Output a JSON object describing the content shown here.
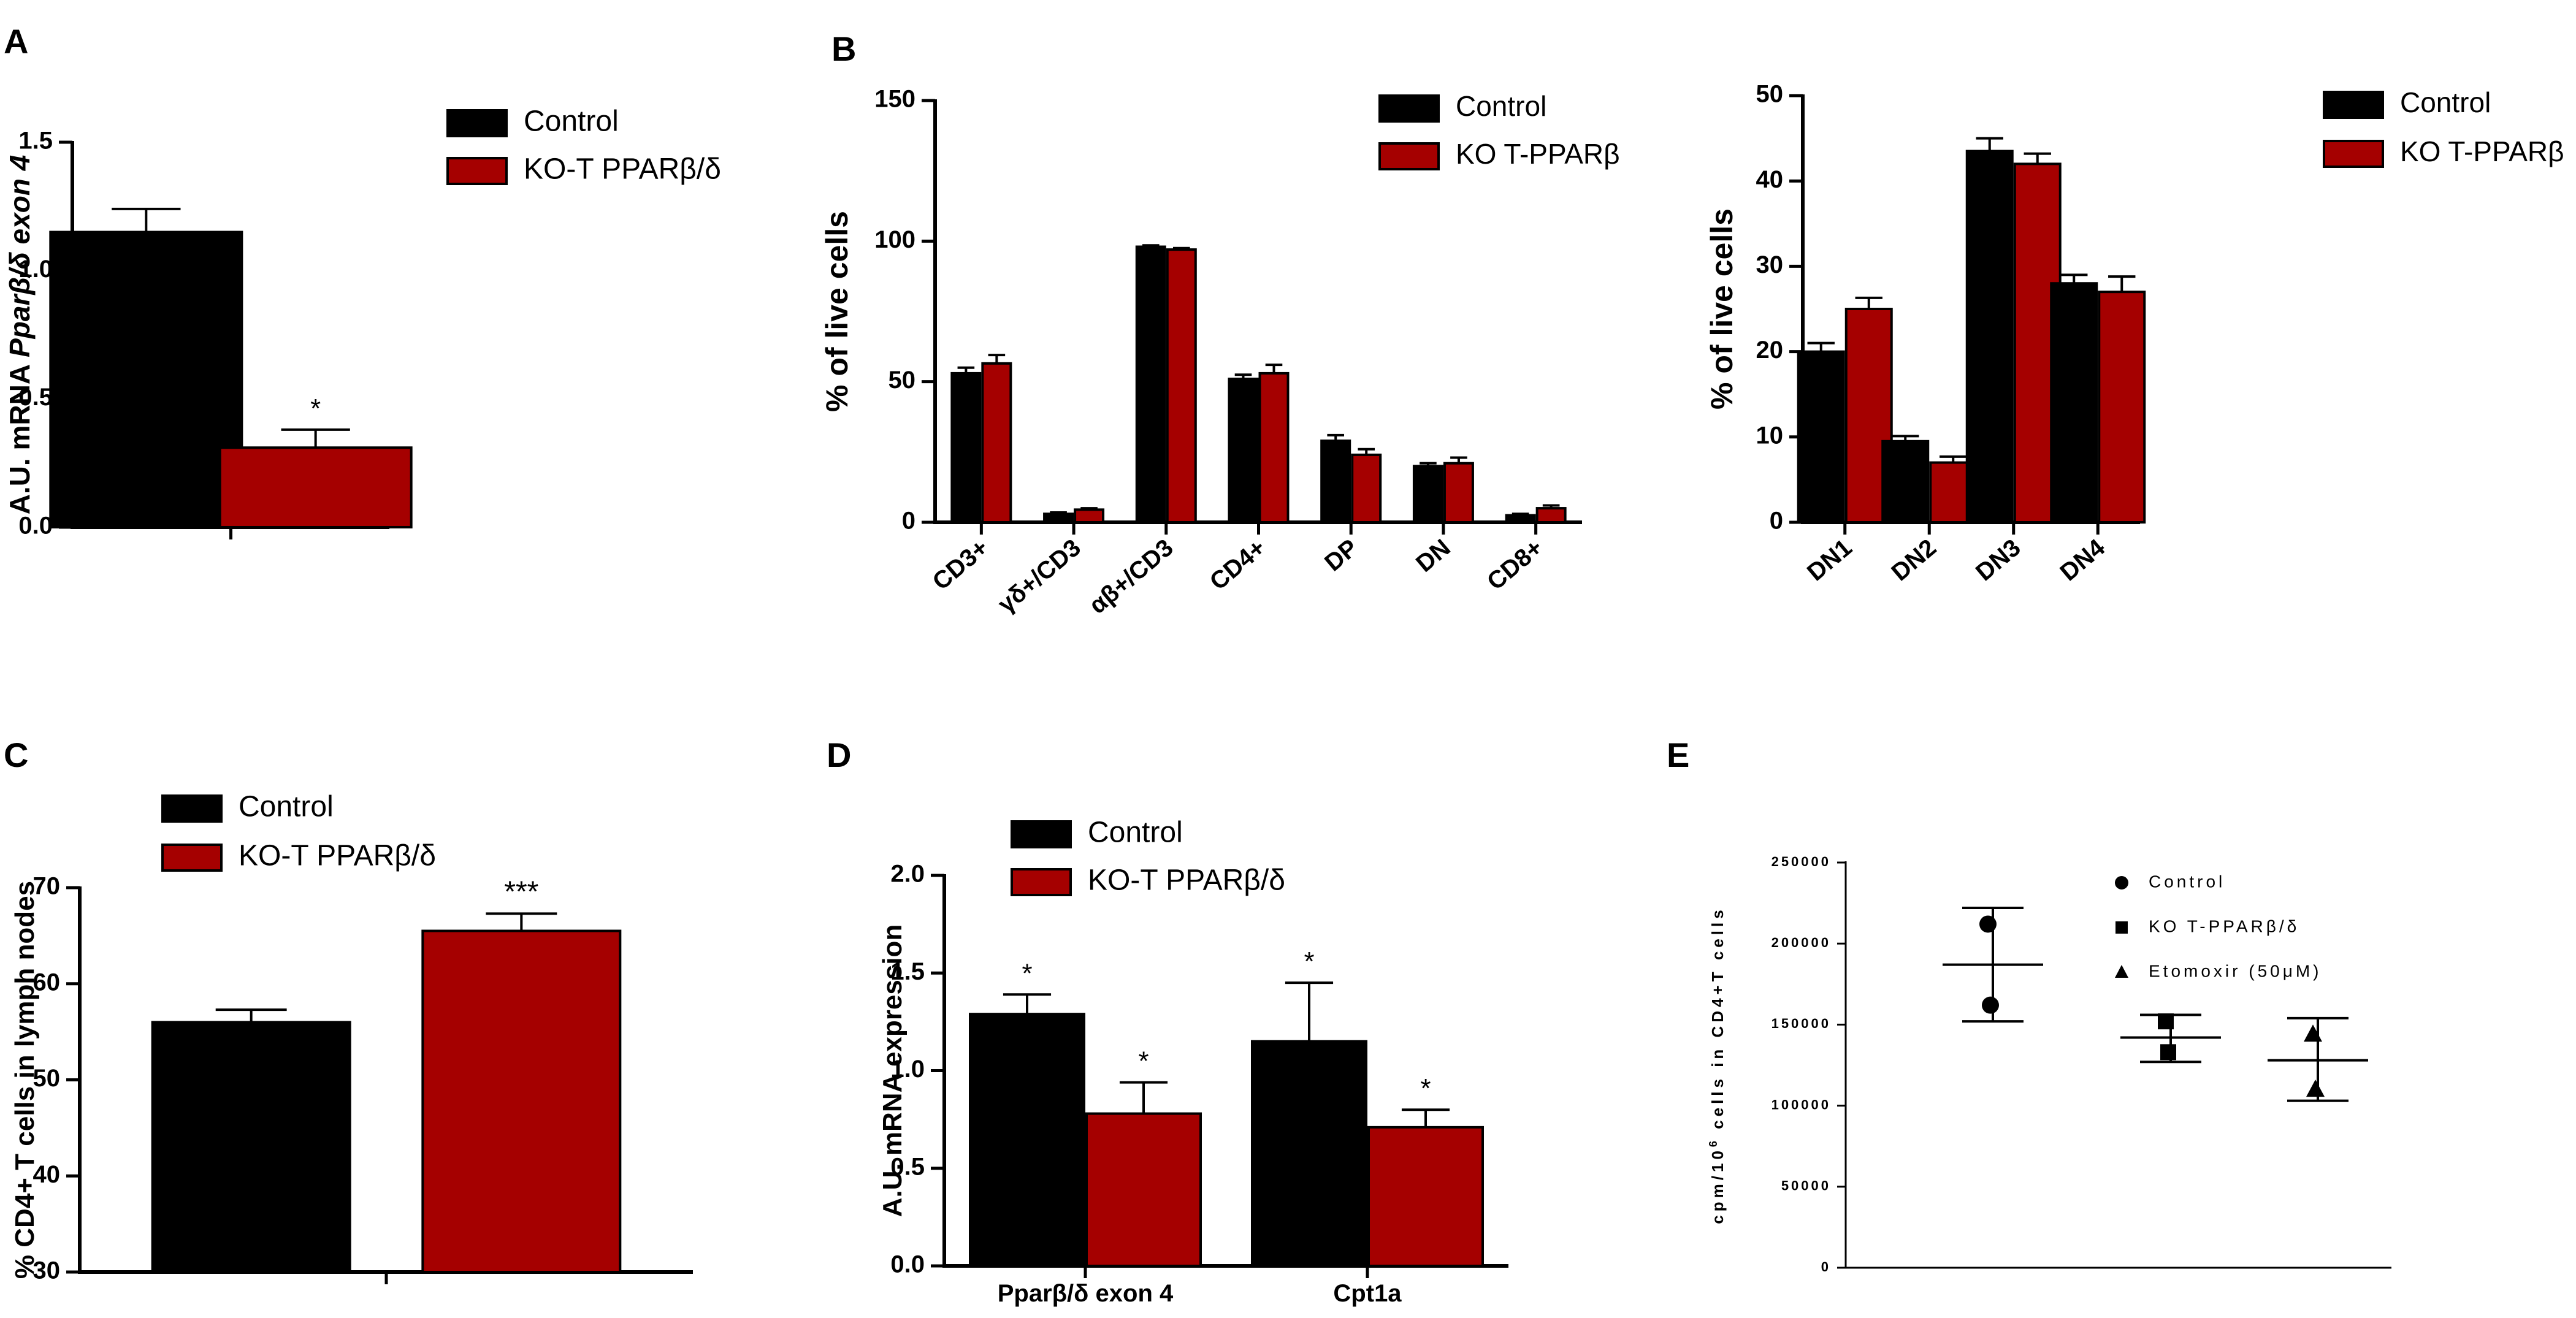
{
  "colors": {
    "control": "#000000",
    "ko": "#a50000",
    "axis": "#000000"
  },
  "chart_data": [
    {
      "id": "A",
      "panel_label": "A",
      "type": "bar",
      "ylabel_parts": [
        "A.U. mRNA ",
        "Pparβ/δ exon 4"
      ],
      "ylim": [
        0,
        1.5
      ],
      "yticks": [
        "0.0",
        "0.5",
        "1.0",
        "1.5"
      ],
      "categories": [
        ""
      ],
      "series": [
        {
          "name": "Control",
          "values": [
            1.15
          ],
          "errors": [
            0.09
          ]
        },
        {
          "name": "KO-T PPARβ/δ",
          "values": [
            0.31
          ],
          "errors": [
            0.07
          ]
        }
      ],
      "annotations": [
        "",
        "*"
      ],
      "legend": {
        "labels": [
          "Control",
          "KO-T PPARβ/δ"
        ],
        "position": "top-right"
      }
    },
    {
      "id": "B1",
      "panel_label": "B",
      "type": "bar",
      "ylabel": "% of live cells",
      "ylim": [
        0,
        150
      ],
      "yticks": [
        "0",
        "50",
        "100",
        "150"
      ],
      "categories": [
        "CD3+",
        "γδ+/CD3",
        "αβ+/CD3",
        "CD4+",
        "DP",
        "DN",
        "CD8+"
      ],
      "series": [
        {
          "name": "Control",
          "values": [
            53,
            3,
            98,
            51,
            29,
            20,
            2.5
          ],
          "errors": [
            2,
            0.5,
            0.5,
            1.5,
            2,
            1,
            0.5
          ]
        },
        {
          "name": "KO T-PPARβ",
          "values": [
            56.5,
            4.5,
            97,
            53,
            24,
            21,
            5
          ],
          "errors": [
            3,
            0.5,
            0.5,
            3,
            2,
            2,
            1
          ]
        }
      ],
      "legend": {
        "labels": [
          "Control",
          "KO T-PPARβ"
        ],
        "position": "top-right"
      }
    },
    {
      "id": "B2",
      "panel_label": "",
      "type": "bar",
      "ylabel": "% of live cells",
      "ylim": [
        0,
        50
      ],
      "yticks": [
        "0",
        "10",
        "20",
        "30",
        "40",
        "50"
      ],
      "categories": [
        "DN1",
        "DN2",
        "DN3",
        "DN4"
      ],
      "series": [
        {
          "name": "Control",
          "values": [
            20,
            9.5,
            43.5,
            28
          ],
          "errors": [
            1,
            0.6,
            1.5,
            1
          ]
        },
        {
          "name": "KO T-PPARβ",
          "values": [
            25,
            7,
            42,
            27
          ],
          "errors": [
            1.3,
            0.7,
            1.2,
            1.8
          ]
        }
      ],
      "legend": {
        "labels": [
          "Control",
          "KO T-PPARβ"
        ],
        "position": "top-right"
      }
    },
    {
      "id": "C",
      "panel_label": "C",
      "type": "bar",
      "ylabel": "% CD4+ T cells in lymph nodes",
      "ylim": [
        30,
        70
      ],
      "yticks": [
        "30",
        "40",
        "50",
        "60",
        "70"
      ],
      "categories": [
        ""
      ],
      "series": [
        {
          "name": "Control",
          "values": [
            56
          ],
          "errors": [
            1.3
          ]
        },
        {
          "name": "KO-T PPARβ/δ",
          "values": [
            65.5
          ],
          "errors": [
            1.8
          ]
        }
      ],
      "annotations": [
        "",
        "***"
      ],
      "legend": {
        "labels": [
          "Control",
          "KO-T PPARβ/δ"
        ],
        "position": "top-left"
      }
    },
    {
      "id": "D",
      "panel_label": "D",
      "type": "bar",
      "ylabel": "A.U. mRNA expression",
      "ylim": [
        0,
        2.0
      ],
      "yticks": [
        "0.0",
        "0.5",
        "1.0",
        "1.5",
        "2.0"
      ],
      "categories": [
        "Pparβ/δ exon 4",
        "Cpt1a"
      ],
      "series": [
        {
          "name": "Control",
          "values": [
            1.29,
            1.15
          ],
          "errors": [
            0.1,
            0.3
          ]
        },
        {
          "name": "KO-T PPARβ/δ",
          "values": [
            0.78,
            0.71
          ],
          "errors": [
            0.16,
            0.09
          ]
        }
      ],
      "annotations": [
        "*",
        "*"
      ],
      "legend": {
        "labels": [
          "Control",
          "KO-T PPARβ/δ"
        ],
        "position": "top-left"
      }
    },
    {
      "id": "E",
      "panel_label": "E",
      "type": "scatter",
      "ylabel_parts": [
        "cpm/10",
        "6",
        " cells in CD4+T cells"
      ],
      "ylim": [
        0,
        250000
      ],
      "yticks": [
        "0",
        "50000",
        "100000",
        "150000",
        "200000",
        "250000"
      ],
      "groups": [
        {
          "name": "Control",
          "marker": "circle",
          "points": [
            212000,
            162000
          ],
          "mean": 187000,
          "sd_low": 152000,
          "sd_high": 222000
        },
        {
          "name": "KO T-PPARβ/δ",
          "marker": "square",
          "points": [
            152000,
            133000
          ],
          "mean": 142000,
          "sd_low": 127000,
          "sd_high": 156000
        },
        {
          "name": "Etomoxir (50μM)",
          "marker": "triangle",
          "points": [
            144000,
            110000
          ],
          "mean": 128000,
          "sd_low": 103000,
          "sd_high": 154000
        }
      ],
      "legend": {
        "labels": [
          "Control",
          "KO T-PPARβ/δ",
          "Etomoxir (50μM)"
        ],
        "position": "top-right"
      }
    }
  ]
}
